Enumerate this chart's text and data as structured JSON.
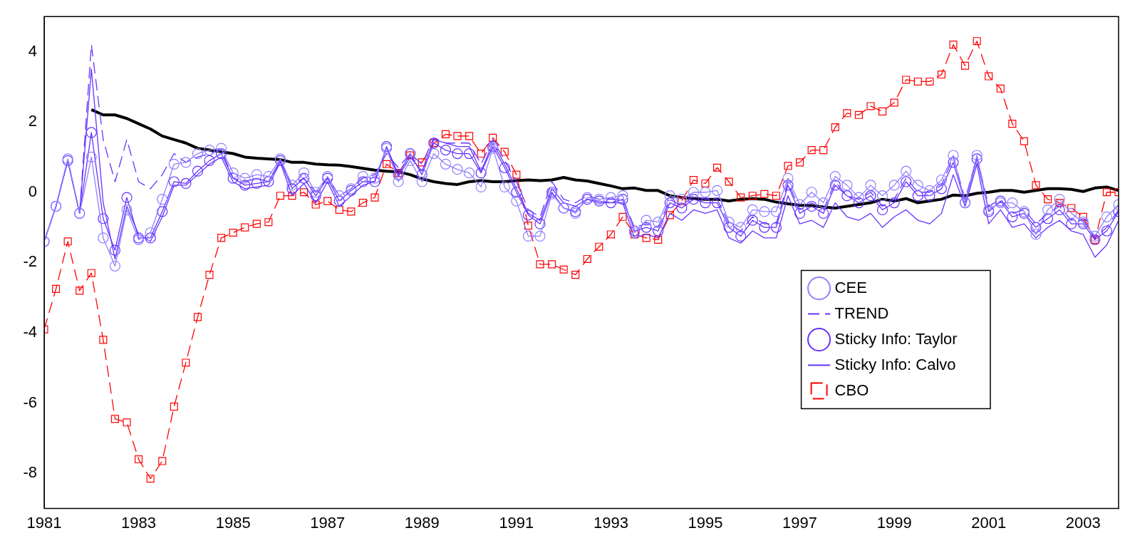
{
  "chart_data": {
    "type": "line",
    "xlim": [
      1981,
      2003.75
    ],
    "xticks": [
      1981,
      1983,
      1985,
      1987,
      1989,
      1991,
      1993,
      1995,
      1997,
      1999,
      2001,
      2003
    ],
    "ylim": [
      -9,
      5
    ],
    "yticks": [
      -8,
      -6,
      -4,
      -2,
      0,
      2,
      4
    ],
    "grid": false,
    "legend": "bottom right",
    "x": [
      1981,
      1981.25,
      1981.5,
      1981.75,
      1982,
      1982.25,
      1982.5,
      1982.75,
      1983,
      1983.25,
      1983.5,
      1983.75,
      1984,
      1984.25,
      1984.5,
      1984.75,
      1985,
      1985.25,
      1985.5,
      1985.75,
      1986,
      1986.25,
      1986.5,
      1986.75,
      1987,
      1987.25,
      1987.5,
      1987.75,
      1988,
      1988.25,
      1988.5,
      1988.75,
      1989,
      1989.25,
      1989.5,
      1989.75,
      1990,
      1990.25,
      1990.5,
      1990.75,
      1991,
      1991.25,
      1991.5,
      1991.75,
      1992,
      1992.25,
      1992.5,
      1992.75,
      1993,
      1993.25,
      1993.5,
      1993.75,
      1994,
      1994.25,
      1994.5,
      1994.75,
      1995,
      1995.25,
      1995.5,
      1995.75,
      1996,
      1996.25,
      1996.5,
      1996.75,
      1997,
      1997.25,
      1997.5,
      1997.75,
      1998,
      1998.25,
      1998.5,
      1998.75,
      1999,
      1999.25,
      1999.5,
      1999.75,
      2000,
      2000.25,
      2000.5,
      2000.75,
      2001,
      2001.25,
      2001.5,
      2001.75,
      2002,
      2002.25,
      2002.5,
      2002.75,
      2003,
      2003.25,
      2003.5,
      2003.75
    ],
    "series": [
      {
        "name": "CEE",
        "color": "#9080ff",
        "marker": "circle",
        "line_style": "solid",
        "values": [
          -1.4,
          -0.4,
          0.95,
          -0.6,
          1.0,
          -1.3,
          -2.1,
          -0.5,
          -1.35,
          -1.15,
          -0.2,
          0.8,
          0.85,
          1.1,
          1.2,
          1.25,
          0.55,
          0.4,
          0.5,
          0.45,
          0.95,
          0.2,
          0.55,
          0,
          0.45,
          -0.1,
          0.1,
          0.45,
          0.4,
          1.25,
          0.3,
          0.9,
          0.3,
          1.1,
          0.8,
          0.65,
          0.55,
          0.15,
          1.25,
          0.15,
          -0.25,
          -1.25,
          -1.25,
          -0.05,
          -0.45,
          -0.6,
          -0.15,
          -0.2,
          -0.15,
          -0.1,
          -1.15,
          -0.8,
          -0.85,
          -0.1,
          -0.2,
          0,
          0,
          0.05,
          -0.85,
          -1.0,
          -0.5,
          -0.55,
          -0.55,
          0.4,
          -0.35,
          0,
          -0.3,
          0.45,
          0.2,
          -0.15,
          0.2,
          -0.1,
          0.2,
          0.6,
          0.2,
          0.05,
          0.35,
          1.05,
          -0.3,
          1.05,
          -0.5,
          -0.3,
          -0.3,
          -0.55,
          -1.2,
          -0.5,
          -0.2,
          -0.6,
          -0.85,
          -1.25,
          -0.7,
          -0.35
        ]
      },
      {
        "name": "TREND",
        "color": "#6633ff",
        "marker": "none",
        "line_style": "dashed",
        "values": [
          -1.4,
          -0.4,
          0.9,
          -0.6,
          4.2,
          1.5,
          0.3,
          1.5,
          0.3,
          0.1,
          0.5,
          1.1,
          0.85,
          1.0,
          1.1,
          1.2,
          0.4,
          0.3,
          0.4,
          0.3,
          0.9,
          0.2,
          0.4,
          0,
          0.4,
          -0.1,
          0.1,
          0.4,
          0.5,
          1.1,
          0.7,
          1.1,
          0.8,
          1.55,
          1.4,
          1.4,
          1.4,
          0.8,
          1.5,
          0.9,
          0.3,
          -0.5,
          -0.7,
          0.3,
          -0.2,
          -0.3,
          -0.1,
          -0.2,
          -0.2,
          -0.2,
          -1.0,
          -0.9,
          -1.0,
          -0.2,
          -0.4,
          -0.1,
          -0.2,
          -0.2,
          -0.9,
          -1.1,
          -0.7,
          -0.9,
          -0.9,
          0.3,
          -0.5,
          -0.3,
          -0.5,
          0.3,
          -0.1,
          -0.2,
          0,
          -0.4,
          -0.2,
          0.4,
          0,
          0,
          0.2,
          1.0,
          -0.2,
          1.0,
          -0.4,
          -0.2,
          -0.6,
          -0.5,
          -0.9,
          -0.6,
          -0.4,
          -0.8,
          -0.8,
          -1.3,
          -1.0,
          -0.5
        ]
      },
      {
        "name": "Sticky Info: Taylor",
        "color": "#6633ff",
        "marker": "circle",
        "line_style": "solid",
        "values": [
          -1.4,
          -0.4,
          0.9,
          -0.6,
          1.7,
          -0.75,
          -1.65,
          -0.15,
          -1.3,
          -1.3,
          -0.55,
          0.3,
          0.25,
          0.6,
          0.9,
          1.1,
          0.4,
          0.2,
          0.25,
          0.3,
          0.9,
          0.1,
          0.4,
          -0.1,
          0.4,
          -0.25,
          0.05,
          0.3,
          0.3,
          1.3,
          0.5,
          1.1,
          0.5,
          1.4,
          1.2,
          1.1,
          1.1,
          0.55,
          1.3,
          0.7,
          0,
          -0.65,
          -0.9,
          0,
          -0.45,
          -0.55,
          -0.2,
          -0.25,
          -0.3,
          -0.2,
          -1.1,
          -1.0,
          -1.1,
          -0.3,
          -0.45,
          -0.2,
          -0.3,
          -0.3,
          -1.0,
          -1.25,
          -0.8,
          -1.0,
          -1.0,
          0.2,
          -0.6,
          -0.4,
          -0.6,
          0.2,
          -0.1,
          -0.3,
          -0.1,
          -0.5,
          -0.3,
          0.3,
          -0.1,
          -0.1,
          0.1,
          0.85,
          -0.3,
          0.95,
          -0.55,
          -0.25,
          -0.7,
          -0.6,
          -1.0,
          -0.75,
          -0.5,
          -0.9,
          -0.9,
          -1.35,
          -1.1,
          -0.55
        ]
      },
      {
        "name": "Sticky Info: Calvo",
        "color": "#6633ff",
        "marker": "none",
        "line_style": "solid",
        "values": [
          -1.4,
          -0.4,
          0.9,
          -0.6,
          3.5,
          -0.3,
          -1.9,
          -0.4,
          -1.2,
          -1.4,
          -0.7,
          0.2,
          0.2,
          0.5,
          0.8,
          1.0,
          0.3,
          0.1,
          0.15,
          0.2,
          0.85,
          -0.1,
          0.25,
          -0.3,
          0.3,
          -0.4,
          -0.1,
          0.2,
          0.3,
          1.25,
          0.45,
          1.0,
          0.6,
          1.5,
          1.4,
          1.3,
          1.3,
          0.6,
          1.4,
          0.8,
          0.1,
          -0.6,
          -0.8,
          0.1,
          -0.3,
          -0.4,
          -0.2,
          -0.3,
          -0.3,
          -0.3,
          -1.3,
          -1.2,
          -1.3,
          -0.6,
          -0.8,
          -0.5,
          -0.6,
          -0.5,
          -1.3,
          -1.45,
          -1.1,
          -1.3,
          -1.3,
          -0.1,
          -0.9,
          -0.8,
          -1.0,
          -0.3,
          -0.7,
          -0.8,
          -0.6,
          -1.0,
          -0.7,
          -0.5,
          -0.8,
          -0.9,
          -0.6,
          0.5,
          -0.4,
          0.8,
          -0.9,
          -0.5,
          -1.0,
          -0.9,
          -1.3,
          -1.0,
          -0.8,
          -1.1,
          -1.2,
          -1.85,
          -1.5,
          -0.8
        ]
      },
      {
        "name": "CBO",
        "color": "#ff0000",
        "marker": "square",
        "line_style": "dashed",
        "values": [
          -3.9,
          -2.75,
          -1.4,
          -2.8,
          -2.3,
          -4.2,
          -6.45,
          -6.55,
          -7.6,
          -8.15,
          -7.65,
          -6.1,
          -4.85,
          -3.55,
          -2.35,
          -1.3,
          -1.15,
          -1.0,
          -0.9,
          -0.85,
          -0.1,
          -0.1,
          0,
          -0.35,
          -0.25,
          -0.5,
          -0.55,
          -0.3,
          -0.15,
          0.8,
          0.55,
          1.05,
          0.85,
          1.4,
          1.65,
          1.6,
          1.6,
          1.1,
          1.55,
          1.15,
          0.5,
          -0.95,
          -2.05,
          -2.05,
          -2.2,
          -2.35,
          -1.9,
          -1.55,
          -1.2,
          -0.7,
          -1.2,
          -1.3,
          -1.35,
          -0.65,
          -0.25,
          0.35,
          0.25,
          0.7,
          0.3,
          -0.15,
          -0.1,
          -0.05,
          -0.1,
          0.75,
          0.85,
          1.2,
          1.2,
          1.85,
          2.25,
          2.2,
          2.45,
          2.3,
          2.55,
          3.2,
          3.15,
          3.15,
          3.35,
          4.2,
          3.6,
          4.3,
          3.3,
          2.95,
          1.95,
          1.45,
          0.2,
          -0.2,
          -0.3,
          -0.45,
          -0.7,
          -1.35,
          0,
          0
        ]
      },
      {
        "color": "#000000",
        "marker": "none",
        "line_style": "solid",
        "x": [
          1982,
          1982.25,
          1982.5,
          1982.75,
          1983,
          1983.25,
          1983.5,
          1983.75,
          1984,
          1984.25,
          1984.5,
          1984.75,
          1985,
          1985.25,
          1985.5,
          1985.75,
          1986,
          1986.25,
          1986.5,
          1986.75,
          1987,
          1987.25,
          1987.5,
          1987.75,
          1988,
          1988.25,
          1988.5,
          1988.75,
          1989,
          1989.25,
          1989.5,
          1989.75,
          1990,
          1990.25,
          1990.5,
          1990.75,
          1991,
          1991.25,
          1991.5,
          1991.75,
          1992,
          1992.25,
          1992.5,
          1992.75,
          1993,
          1993.25,
          1993.5,
          1993.75,
          1994,
          1994.25,
          1994.5,
          1994.75,
          1995,
          1995.25,
          1995.5,
          1995.75,
          1996,
          1996.25,
          1996.5,
          1996.75,
          1997,
          1997.25,
          1997.5,
          1997.75,
          1998,
          1998.25,
          1998.5,
          1998.75,
          1999,
          1999.25,
          1999.5,
          1999.75,
          2000,
          2000.25,
          2000.5,
          2000.75,
          2001,
          2001.25,
          2001.5,
          2001.75,
          2002,
          2002.25,
          2002.5,
          2002.75,
          2003,
          2003.25,
          2003.5,
          2003.75
        ],
        "values": [
          2.35,
          2.2,
          2.2,
          2.1,
          1.95,
          1.8,
          1.6,
          1.5,
          1.4,
          1.25,
          1.2,
          1.15,
          1.1,
          1.0,
          0.97,
          0.95,
          0.93,
          0.85,
          0.85,
          0.8,
          0.78,
          0.77,
          0.73,
          0.68,
          0.63,
          0.6,
          0.58,
          0.5,
          0.38,
          0.3,
          0.25,
          0.22,
          0.3,
          0.33,
          0.3,
          0.3,
          0.33,
          0.35,
          0.33,
          0.35,
          0.42,
          0.35,
          0.32,
          0.25,
          0.18,
          0.1,
          0.12,
          0.05,
          0.05,
          -0.1,
          -0.15,
          -0.18,
          -0.2,
          -0.2,
          -0.25,
          -0.2,
          -0.18,
          -0.2,
          -0.28,
          -0.33,
          -0.37,
          -0.38,
          -0.42,
          -0.45,
          -0.4,
          -0.35,
          -0.3,
          -0.2,
          -0.25,
          -0.18,
          -0.3,
          -0.25,
          -0.2,
          -0.08,
          -0.1,
          -0.03,
          0,
          0.05,
          0.05,
          0,
          0.05,
          0.1,
          0.1,
          0.08,
          0.02,
          0.12,
          0.15,
          0.05
        ]
      }
    ]
  }
}
